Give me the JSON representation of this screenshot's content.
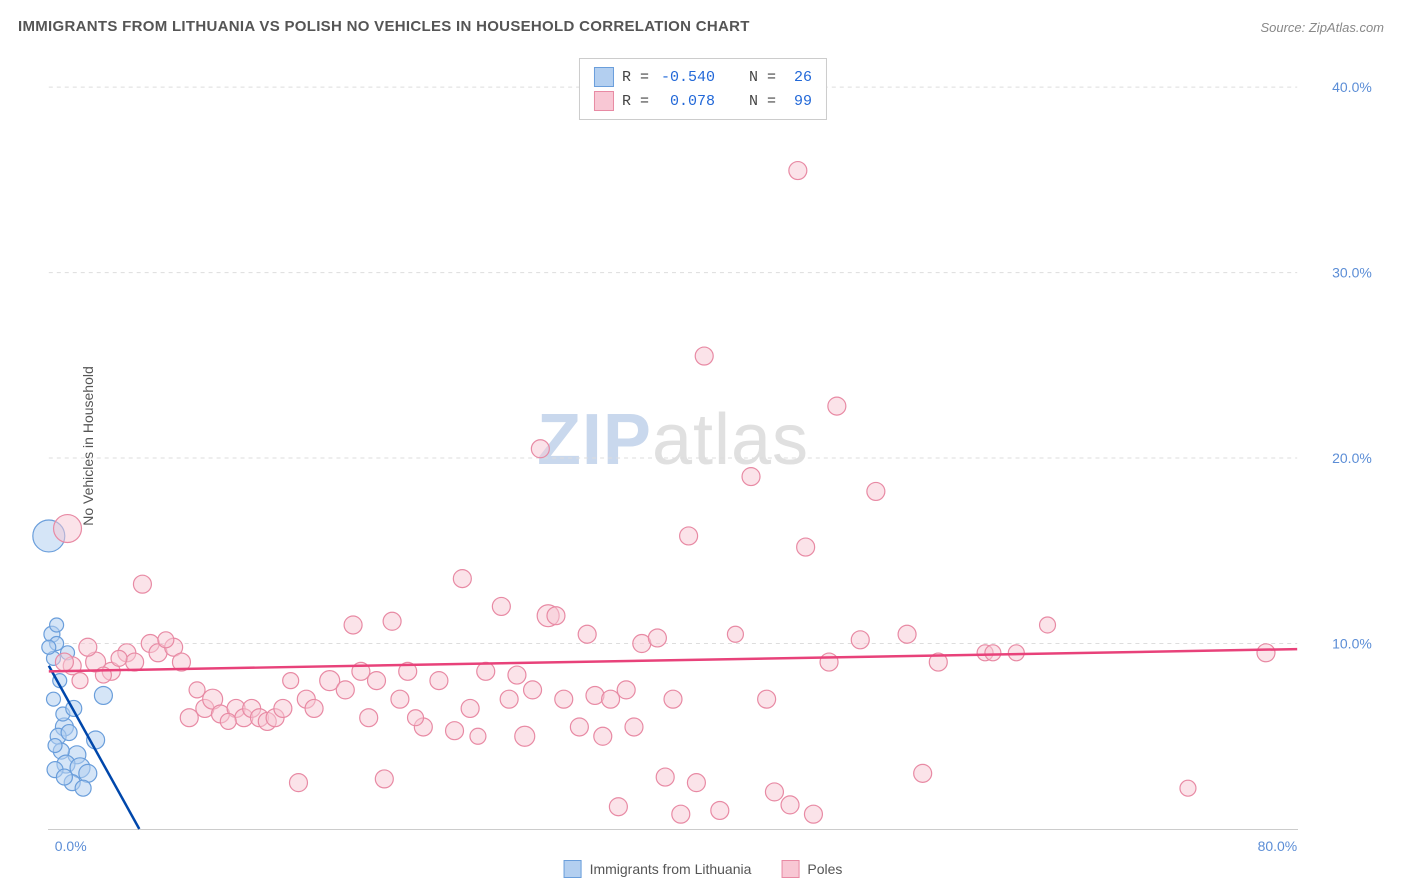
{
  "title": "IMMIGRANTS FROM LITHUANIA VS POLISH NO VEHICLES IN HOUSEHOLD CORRELATION CHART",
  "source": "Source: ZipAtlas.com",
  "y_label": "No Vehicles in Household",
  "watermark": {
    "part1": "ZIP",
    "part2": "atlas"
  },
  "chart": {
    "type": "scatter",
    "xlim": [
      0,
      80
    ],
    "ylim": [
      0,
      42
    ],
    "x_ticks": [
      {
        "value": 0,
        "label": "0.0%"
      },
      {
        "value": 80,
        "label": "80.0%"
      }
    ],
    "y_ticks": [
      {
        "value": 10,
        "label": "10.0%"
      },
      {
        "value": 20,
        "label": "20.0%"
      },
      {
        "value": 30,
        "label": "30.0%"
      },
      {
        "value": 40,
        "label": "40.0%"
      }
    ],
    "background_color": "#ffffff",
    "grid_color": "#dddddd",
    "axis_label_color": "#5b8dd6",
    "text_color": "#555555"
  },
  "series": [
    {
      "name": "Immigrants from Lithuania",
      "R": "-0.540",
      "N": "26",
      "fill_color": "#b3cff0",
      "stroke_color": "#6a9edb",
      "fill_opacity": 0.55,
      "line_color": "#0047ab",
      "trend": {
        "x1": 0,
        "y1": 8.8,
        "x2": 5.8,
        "y2": 0
      },
      "points": [
        {
          "x": 0.2,
          "y": 10.5,
          "r": 8
        },
        {
          "x": 0.5,
          "y": 10.0,
          "r": 7
        },
        {
          "x": 0.3,
          "y": 9.2,
          "r": 7
        },
        {
          "x": 0.0,
          "y": 15.8,
          "r": 16
        },
        {
          "x": 1.0,
          "y": 5.5,
          "r": 9
        },
        {
          "x": 0.6,
          "y": 5.0,
          "r": 8
        },
        {
          "x": 1.3,
          "y": 5.2,
          "r": 8
        },
        {
          "x": 1.8,
          "y": 4.0,
          "r": 9
        },
        {
          "x": 0.8,
          "y": 4.2,
          "r": 8
        },
        {
          "x": 1.1,
          "y": 3.5,
          "r": 9
        },
        {
          "x": 2.0,
          "y": 3.3,
          "r": 10
        },
        {
          "x": 0.4,
          "y": 3.2,
          "r": 8
        },
        {
          "x": 2.5,
          "y": 3.0,
          "r": 9
        },
        {
          "x": 1.5,
          "y": 2.5,
          "r": 8
        },
        {
          "x": 3.0,
          "y": 4.8,
          "r": 9
        },
        {
          "x": 0.9,
          "y": 6.2,
          "r": 7
        },
        {
          "x": 0.3,
          "y": 7.0,
          "r": 7
        },
        {
          "x": 0.5,
          "y": 11.0,
          "r": 7
        },
        {
          "x": 1.2,
          "y": 9.5,
          "r": 7
        },
        {
          "x": 0.7,
          "y": 8.0,
          "r": 7
        },
        {
          "x": 2.2,
          "y": 2.2,
          "r": 8
        },
        {
          "x": 1.6,
          "y": 6.5,
          "r": 8
        },
        {
          "x": 0.4,
          "y": 4.5,
          "r": 7
        },
        {
          "x": 1.0,
          "y": 2.8,
          "r": 8
        },
        {
          "x": 0.0,
          "y": 9.8,
          "r": 7
        },
        {
          "x": 3.5,
          "y": 7.2,
          "r": 9
        }
      ]
    },
    {
      "name": "Poles",
      "R": "0.078",
      "N": "99",
      "fill_color": "#f8c7d4",
      "stroke_color": "#e88aa4",
      "fill_opacity": 0.5,
      "line_color": "#e8427a",
      "trend": {
        "x1": 0,
        "y1": 8.5,
        "x2": 80,
        "y2": 9.7
      },
      "points": [
        {
          "x": 1.2,
          "y": 16.2,
          "r": 14
        },
        {
          "x": 3.0,
          "y": 9.0,
          "r": 10
        },
        {
          "x": 2.5,
          "y": 9.8,
          "r": 9
        },
        {
          "x": 1.5,
          "y": 8.8,
          "r": 9
        },
        {
          "x": 1.0,
          "y": 9.0,
          "r": 9
        },
        {
          "x": 4.0,
          "y": 8.5,
          "r": 9
        },
        {
          "x": 5.0,
          "y": 9.5,
          "r": 9
        },
        {
          "x": 5.5,
          "y": 9.0,
          "r": 9
        },
        {
          "x": 6.0,
          "y": 13.2,
          "r": 9
        },
        {
          "x": 6.5,
          "y": 10.0,
          "r": 9
        },
        {
          "x": 7.0,
          "y": 9.5,
          "r": 9
        },
        {
          "x": 8.0,
          "y": 9.8,
          "r": 9
        },
        {
          "x": 8.5,
          "y": 9.0,
          "r": 9
        },
        {
          "x": 9.0,
          "y": 6.0,
          "r": 9
        },
        {
          "x": 10.0,
          "y": 6.5,
          "r": 9
        },
        {
          "x": 10.5,
          "y": 7.0,
          "r": 10
        },
        {
          "x": 11.0,
          "y": 6.2,
          "r": 9
        },
        {
          "x": 12.0,
          "y": 6.5,
          "r": 9
        },
        {
          "x": 12.5,
          "y": 6.0,
          "r": 9
        },
        {
          "x": 13.0,
          "y": 6.5,
          "r": 9
        },
        {
          "x": 13.5,
          "y": 6.0,
          "r": 9
        },
        {
          "x": 14.0,
          "y": 5.8,
          "r": 9
        },
        {
          "x": 14.5,
          "y": 6.0,
          "r": 9
        },
        {
          "x": 15.0,
          "y": 6.5,
          "r": 9
        },
        {
          "x": 16.0,
          "y": 2.5,
          "r": 9
        },
        {
          "x": 16.5,
          "y": 7.0,
          "r": 9
        },
        {
          "x": 17.0,
          "y": 6.5,
          "r": 9
        },
        {
          "x": 18.0,
          "y": 8.0,
          "r": 10
        },
        {
          "x": 19.0,
          "y": 7.5,
          "r": 9
        },
        {
          "x": 19.5,
          "y": 11.0,
          "r": 9
        },
        {
          "x": 20.0,
          "y": 8.5,
          "r": 9
        },
        {
          "x": 20.5,
          "y": 6.0,
          "r": 9
        },
        {
          "x": 21.0,
          "y": 8.0,
          "r": 9
        },
        {
          "x": 21.5,
          "y": 2.7,
          "r": 9
        },
        {
          "x": 22.0,
          "y": 11.2,
          "r": 9
        },
        {
          "x": 22.5,
          "y": 7.0,
          "r": 9
        },
        {
          "x": 23.0,
          "y": 8.5,
          "r": 9
        },
        {
          "x": 24.0,
          "y": 5.5,
          "r": 9
        },
        {
          "x": 25.0,
          "y": 8.0,
          "r": 9
        },
        {
          "x": 26.0,
          "y": 5.3,
          "r": 9
        },
        {
          "x": 26.5,
          "y": 13.5,
          "r": 9
        },
        {
          "x": 27.0,
          "y": 6.5,
          "r": 9
        },
        {
          "x": 28.0,
          "y": 8.5,
          "r": 9
        },
        {
          "x": 29.0,
          "y": 12.0,
          "r": 9
        },
        {
          "x": 29.5,
          "y": 7.0,
          "r": 9
        },
        {
          "x": 30.0,
          "y": 8.3,
          "r": 9
        },
        {
          "x": 30.5,
          "y": 5.0,
          "r": 10
        },
        {
          "x": 31.0,
          "y": 7.5,
          "r": 9
        },
        {
          "x": 32.0,
          "y": 11.5,
          "r": 11
        },
        {
          "x": 32.5,
          "y": 11.5,
          "r": 9
        },
        {
          "x": 33.0,
          "y": 7.0,
          "r": 9
        },
        {
          "x": 34.0,
          "y": 5.5,
          "r": 9
        },
        {
          "x": 34.5,
          "y": 10.5,
          "r": 9
        },
        {
          "x": 35.0,
          "y": 7.2,
          "r": 9
        },
        {
          "x": 35.5,
          "y": 5.0,
          "r": 9
        },
        {
          "x": 36.0,
          "y": 7.0,
          "r": 9
        },
        {
          "x": 36.5,
          "y": 1.2,
          "r": 9
        },
        {
          "x": 37.0,
          "y": 7.5,
          "r": 9
        },
        {
          "x": 37.5,
          "y": 5.5,
          "r": 9
        },
        {
          "x": 38.0,
          "y": 10.0,
          "r": 9
        },
        {
          "x": 39.0,
          "y": 10.3,
          "r": 9
        },
        {
          "x": 39.5,
          "y": 2.8,
          "r": 9
        },
        {
          "x": 40.0,
          "y": 7.0,
          "r": 9
        },
        {
          "x": 40.5,
          "y": 0.8,
          "r": 9
        },
        {
          "x": 41.0,
          "y": 15.8,
          "r": 9
        },
        {
          "x": 41.5,
          "y": 2.5,
          "r": 9
        },
        {
          "x": 42.0,
          "y": 25.5,
          "r": 9
        },
        {
          "x": 43.0,
          "y": 1.0,
          "r": 9
        },
        {
          "x": 44.0,
          "y": 10.5,
          "r": 8
        },
        {
          "x": 45.0,
          "y": 19.0,
          "r": 9
        },
        {
          "x": 46.0,
          "y": 7.0,
          "r": 9
        },
        {
          "x": 46.5,
          "y": 2.0,
          "r": 9
        },
        {
          "x": 47.5,
          "y": 1.3,
          "r": 9
        },
        {
          "x": 48.0,
          "y": 35.5,
          "r": 9
        },
        {
          "x": 49.0,
          "y": 0.8,
          "r": 9
        },
        {
          "x": 48.5,
          "y": 15.2,
          "r": 9
        },
        {
          "x": 50.0,
          "y": 9.0,
          "r": 9
        },
        {
          "x": 50.5,
          "y": 22.8,
          "r": 9
        },
        {
          "x": 52.0,
          "y": 10.2,
          "r": 9
        },
        {
          "x": 53.0,
          "y": 18.2,
          "r": 9
        },
        {
          "x": 55.0,
          "y": 10.5,
          "r": 9
        },
        {
          "x": 56.0,
          "y": 3.0,
          "r": 9
        },
        {
          "x": 57.0,
          "y": 9.0,
          "r": 9
        },
        {
          "x": 60.0,
          "y": 9.5,
          "r": 8
        },
        {
          "x": 60.5,
          "y": 9.5,
          "r": 8
        },
        {
          "x": 62.0,
          "y": 9.5,
          "r": 8
        },
        {
          "x": 64.0,
          "y": 11.0,
          "r": 8
        },
        {
          "x": 73.0,
          "y": 2.2,
          "r": 8
        },
        {
          "x": 78.0,
          "y": 9.5,
          "r": 9
        },
        {
          "x": 2.0,
          "y": 8.0,
          "r": 8
        },
        {
          "x": 3.5,
          "y": 8.3,
          "r": 8
        },
        {
          "x": 4.5,
          "y": 9.2,
          "r": 8
        },
        {
          "x": 7.5,
          "y": 10.2,
          "r": 8
        },
        {
          "x": 11.5,
          "y": 5.8,
          "r": 8
        },
        {
          "x": 15.5,
          "y": 8.0,
          "r": 8
        },
        {
          "x": 23.5,
          "y": 6.0,
          "r": 8
        },
        {
          "x": 27.5,
          "y": 5.0,
          "r": 8
        },
        {
          "x": 31.5,
          "y": 20.5,
          "r": 9
        },
        {
          "x": 9.5,
          "y": 7.5,
          "r": 8
        }
      ]
    }
  ],
  "legend_top": {
    "rows": [
      {
        "swatch_fill": "#b3cff0",
        "swatch_stroke": "#6a9edb",
        "r_label": "R =",
        "r_val": "-0.540",
        "n_label": "N =",
        "n_val": "26"
      },
      {
        "swatch_fill": "#f8c7d4",
        "swatch_stroke": "#e88aa4",
        "r_label": "R =",
        "r_val": "0.078",
        "n_label": "N =",
        "n_val": "99"
      }
    ]
  },
  "legend_bottom": [
    {
      "swatch_fill": "#b3cff0",
      "swatch_stroke": "#6a9edb",
      "label": "Immigrants from Lithuania"
    },
    {
      "swatch_fill": "#f8c7d4",
      "swatch_stroke": "#e88aa4",
      "label": "Poles"
    }
  ]
}
